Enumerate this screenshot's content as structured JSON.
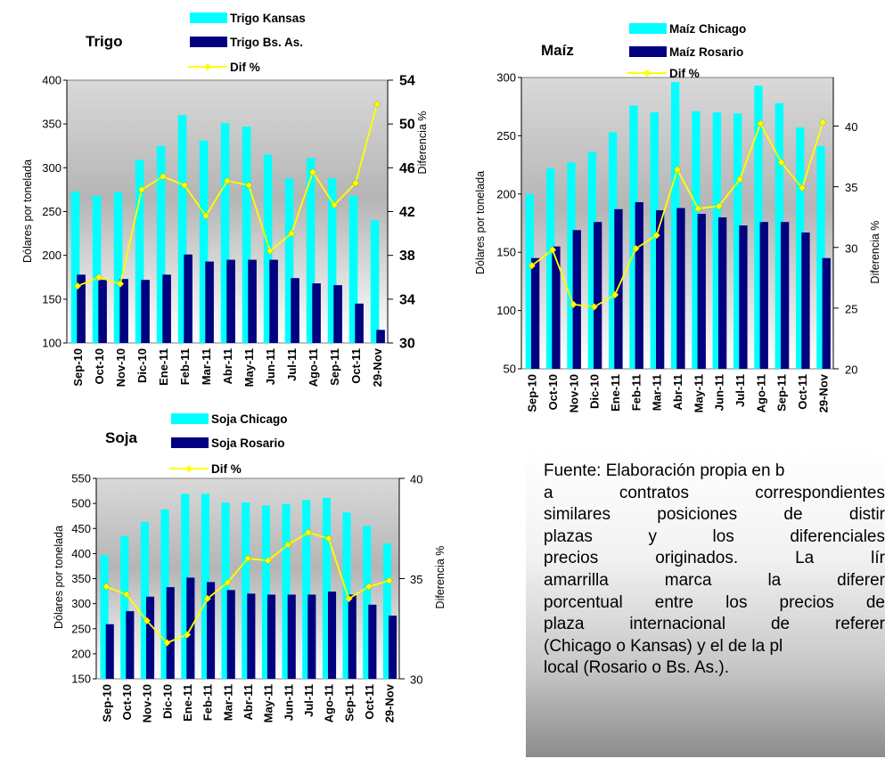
{
  "chart_data": [
    {
      "type": "bar",
      "title": "Trigo",
      "ylabel": "Dólares por tonelada",
      "y2label": "Diferencia %",
      "ylim": [
        100,
        400
      ],
      "y2lim": [
        30,
        54
      ],
      "categories": [
        "Sep-10",
        "Oct-10",
        "Nov-10",
        "Dic-10",
        "Ene-11",
        "Feb-11",
        "Mar-11",
        "Abr-11",
        "May-11",
        "Jun-11",
        "Jul-11",
        "Ago-11",
        "Sep-11",
        "Oct-11",
        "29-Nov"
      ],
      "series": [
        {
          "name": "Trigo Kansas",
          "type": "bar",
          "axis": "left",
          "color": "#00ffff",
          "values": [
            273,
            268,
            272,
            309,
            325,
            360,
            331,
            351,
            347,
            315,
            288,
            311,
            288,
            268,
            240
          ]
        },
        {
          "name": "Trigo Bs. As.",
          "type": "bar",
          "axis": "left",
          "color": "#000080",
          "values": [
            178,
            172,
            173,
            172,
            178,
            201,
            193,
            195,
            195,
            195,
            174,
            168,
            166,
            145,
            115
          ]
        },
        {
          "name": "Dif %",
          "type": "line",
          "axis": "right",
          "color": "#ffff00",
          "values": [
            35.2,
            36.0,
            35.4,
            44.0,
            45.2,
            44.4,
            41.6,
            44.8,
            44.4,
            38.4,
            40.0,
            45.6,
            42.6,
            44.6,
            51.8
          ]
        }
      ],
      "yticks": [
        100,
        150,
        200,
        250,
        300,
        350,
        400
      ],
      "y2ticks": [
        30,
        34,
        38,
        42,
        46,
        50,
        54
      ],
      "y2tick_labels": [
        "30",
        "34",
        "38",
        "42",
        "46",
        "50",
        "54"
      ]
    },
    {
      "type": "bar",
      "title": "Maíz",
      "ylabel": "Dólares por tonelada",
      "y2label": "Diferencia %",
      "ylim": [
        50,
        300
      ],
      "y2lim": [
        20,
        44
      ],
      "categories": [
        "Sep-10",
        "Oct-10",
        "Nov-10",
        "Dic-10",
        "Ene-11",
        "Feb-11",
        "Mar-11",
        "Abr-11",
        "May-11",
        "Jun-11",
        "Jul-11",
        "Ago-11",
        "Sep-11",
        "Oct-11",
        "29-Nov"
      ],
      "series": [
        {
          "name": "Maíz Chicago",
          "type": "bar",
          "axis": "left",
          "color": "#00ffff",
          "values": [
            200,
            222,
            227,
            236,
            253,
            276,
            270,
            296,
            271,
            270,
            269,
            293,
            278,
            257,
            241
          ]
        },
        {
          "name": "Maíz Rosario",
          "type": "bar",
          "axis": "left",
          "color": "#000080",
          "values": [
            145,
            155,
            169,
            176,
            187,
            193,
            186,
            188,
            183,
            180,
            173,
            176,
            176,
            167,
            145
          ]
        },
        {
          "name": "Dif %",
          "type": "line",
          "axis": "right",
          "color": "#ffff00",
          "values": [
            28.5,
            29.8,
            25.3,
            25.1,
            26.1,
            29.9,
            31.0,
            36.4,
            33.2,
            33.4,
            35.6,
            40.2,
            37.0,
            34.9,
            40.3
          ]
        }
      ],
      "yticks": [
        50,
        100,
        150,
        200,
        250,
        300
      ],
      "y2ticks": [
        20,
        25,
        30,
        35,
        40
      ],
      "y2tick_labels": [
        "20",
        "25",
        "30",
        "35",
        "40"
      ]
    },
    {
      "type": "bar",
      "title": "Soja",
      "ylabel": "Dólares por tonelada",
      "y2label": "Diferencia %",
      "ylim": [
        150,
        550
      ],
      "y2lim": [
        30,
        40
      ],
      "categories": [
        "Sep-10",
        "Oct-10",
        "Nov-10",
        "Dic-10",
        "Ene-11",
        "Feb-11",
        "Mar-11",
        "Abr-11",
        "May-11",
        "Jun-11",
        "Jul-11",
        "Ago-11",
        "Sep-11",
        "Oct-11",
        "29-Nov"
      ],
      "series": [
        {
          "name": "Soja Chicago",
          "type": "bar",
          "axis": "left",
          "color": "#00ffff",
          "values": [
            397,
            435,
            463,
            488,
            519,
            519,
            502,
            502,
            496,
            499,
            507,
            511,
            482,
            455,
            420
          ]
        },
        {
          "name": "Soja Rosario",
          "type": "bar",
          "axis": "left",
          "color": "#000080",
          "values": [
            259,
            285,
            314,
            333,
            352,
            343,
            327,
            320,
            318,
            318,
            318,
            324,
            318,
            298,
            276
          ]
        },
        {
          "name": "Dif %",
          "type": "line",
          "axis": "right",
          "color": "#ffff00",
          "values": [
            34.6,
            34.2,
            32.9,
            31.8,
            32.2,
            34.0,
            34.8,
            36.0,
            35.9,
            36.7,
            37.3,
            37.0,
            34.0,
            34.6,
            34.9
          ]
        }
      ],
      "yticks": [
        150,
        200,
        250,
        300,
        350,
        400,
        450,
        500,
        550
      ],
      "y2ticks": [
        30,
        35,
        40
      ],
      "y2tick_labels": [
        "30",
        "35",
        "40"
      ]
    }
  ],
  "note": {
    "lines": [
      "Fuente: Elaboración propia en b",
      "a contratos correspondientes",
      "similares posiciones de distir",
      "plazas y los diferenciales",
      "precios originados. La lír",
      "amarrilla marca la diferer",
      "porcentual entre los precios de",
      "plaza internacional de referer",
      "(Chicago o Kansas) y el de la pl",
      "local (Rosario o Bs. As.)."
    ]
  }
}
